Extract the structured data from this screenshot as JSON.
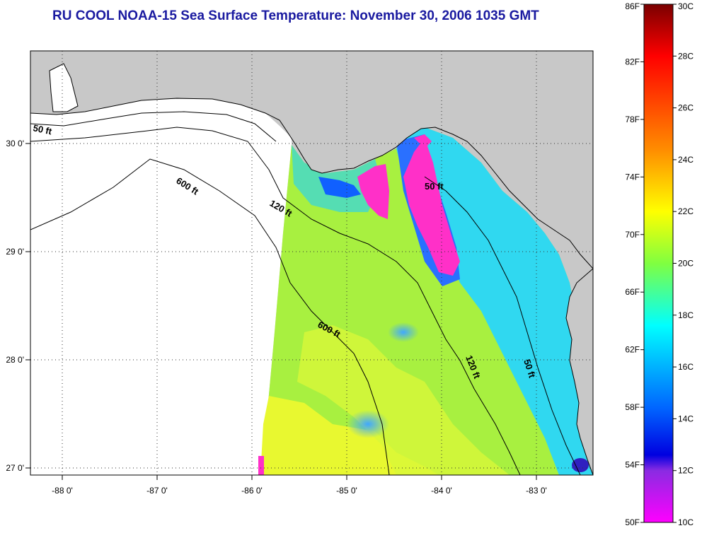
{
  "title": "RU COOL  NOAA-15  Sea Surface Temperature:  November 30, 2006 1035 GMT",
  "lon_ticks": [
    "-88 0'",
    "-87 0'",
    "-86 0'",
    "-85 0'",
    "-84 0'",
    "-83 0'"
  ],
  "lat_ticks": [
    "30 0'",
    "29 0'",
    "28 0'",
    "27 0'"
  ],
  "contours": {
    "c50a": "50 ft",
    "c600a": "600 ft",
    "c120a": "120 ft",
    "c50b": "50 ft",
    "c600b": "600 ft",
    "c120b": "120 ft",
    "c50c": "50 ft"
  },
  "colorbar": {
    "f_labels": [
      "86F",
      "82F",
      "78F",
      "74F",
      "70F",
      "66F",
      "62F",
      "58F",
      "54F",
      "50F"
    ],
    "c_labels": [
      "30C",
      "28C",
      "26C",
      "24C",
      "22C",
      "20C",
      "18C",
      "16C",
      "14C",
      "12C",
      "10C"
    ],
    "colors": [
      "#7a0000",
      "#ff0000",
      "#ff8c00",
      "#ffff00",
      "#80ff40",
      "#00ffff",
      "#0064ff",
      "#0000e0",
      "#8a2be2",
      "#ff00ff"
    ]
  },
  "colors": {
    "land": "#c8c8c8",
    "nodata": "#ffffff",
    "title": "#1a1aa0"
  }
}
